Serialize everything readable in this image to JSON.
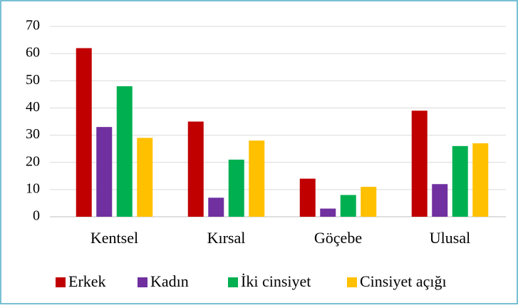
{
  "chart_data": {
    "type": "bar",
    "categories": [
      "Kentsel",
      "Kırsal",
      "Göçebe",
      "Ulusal"
    ],
    "series": [
      {
        "name": "Erkek",
        "color": "#c00000",
        "values": [
          62,
          35,
          14,
          39
        ]
      },
      {
        "name": "Kadın",
        "color": "#7030a0",
        "values": [
          33,
          7,
          3,
          12
        ]
      },
      {
        "name": "İki cinsiyet",
        "color": "#00b050",
        "values": [
          48,
          21,
          8,
          26
        ]
      },
      {
        "name": "Cinsiyet açığı",
        "color": "#ffc000",
        "values": [
          29,
          28,
          11,
          27
        ]
      }
    ],
    "ylim": [
      0,
      70
    ],
    "yticks": [
      0,
      10,
      20,
      30,
      40,
      50,
      60,
      70
    ],
    "grid": true,
    "legend": "bottom"
  }
}
